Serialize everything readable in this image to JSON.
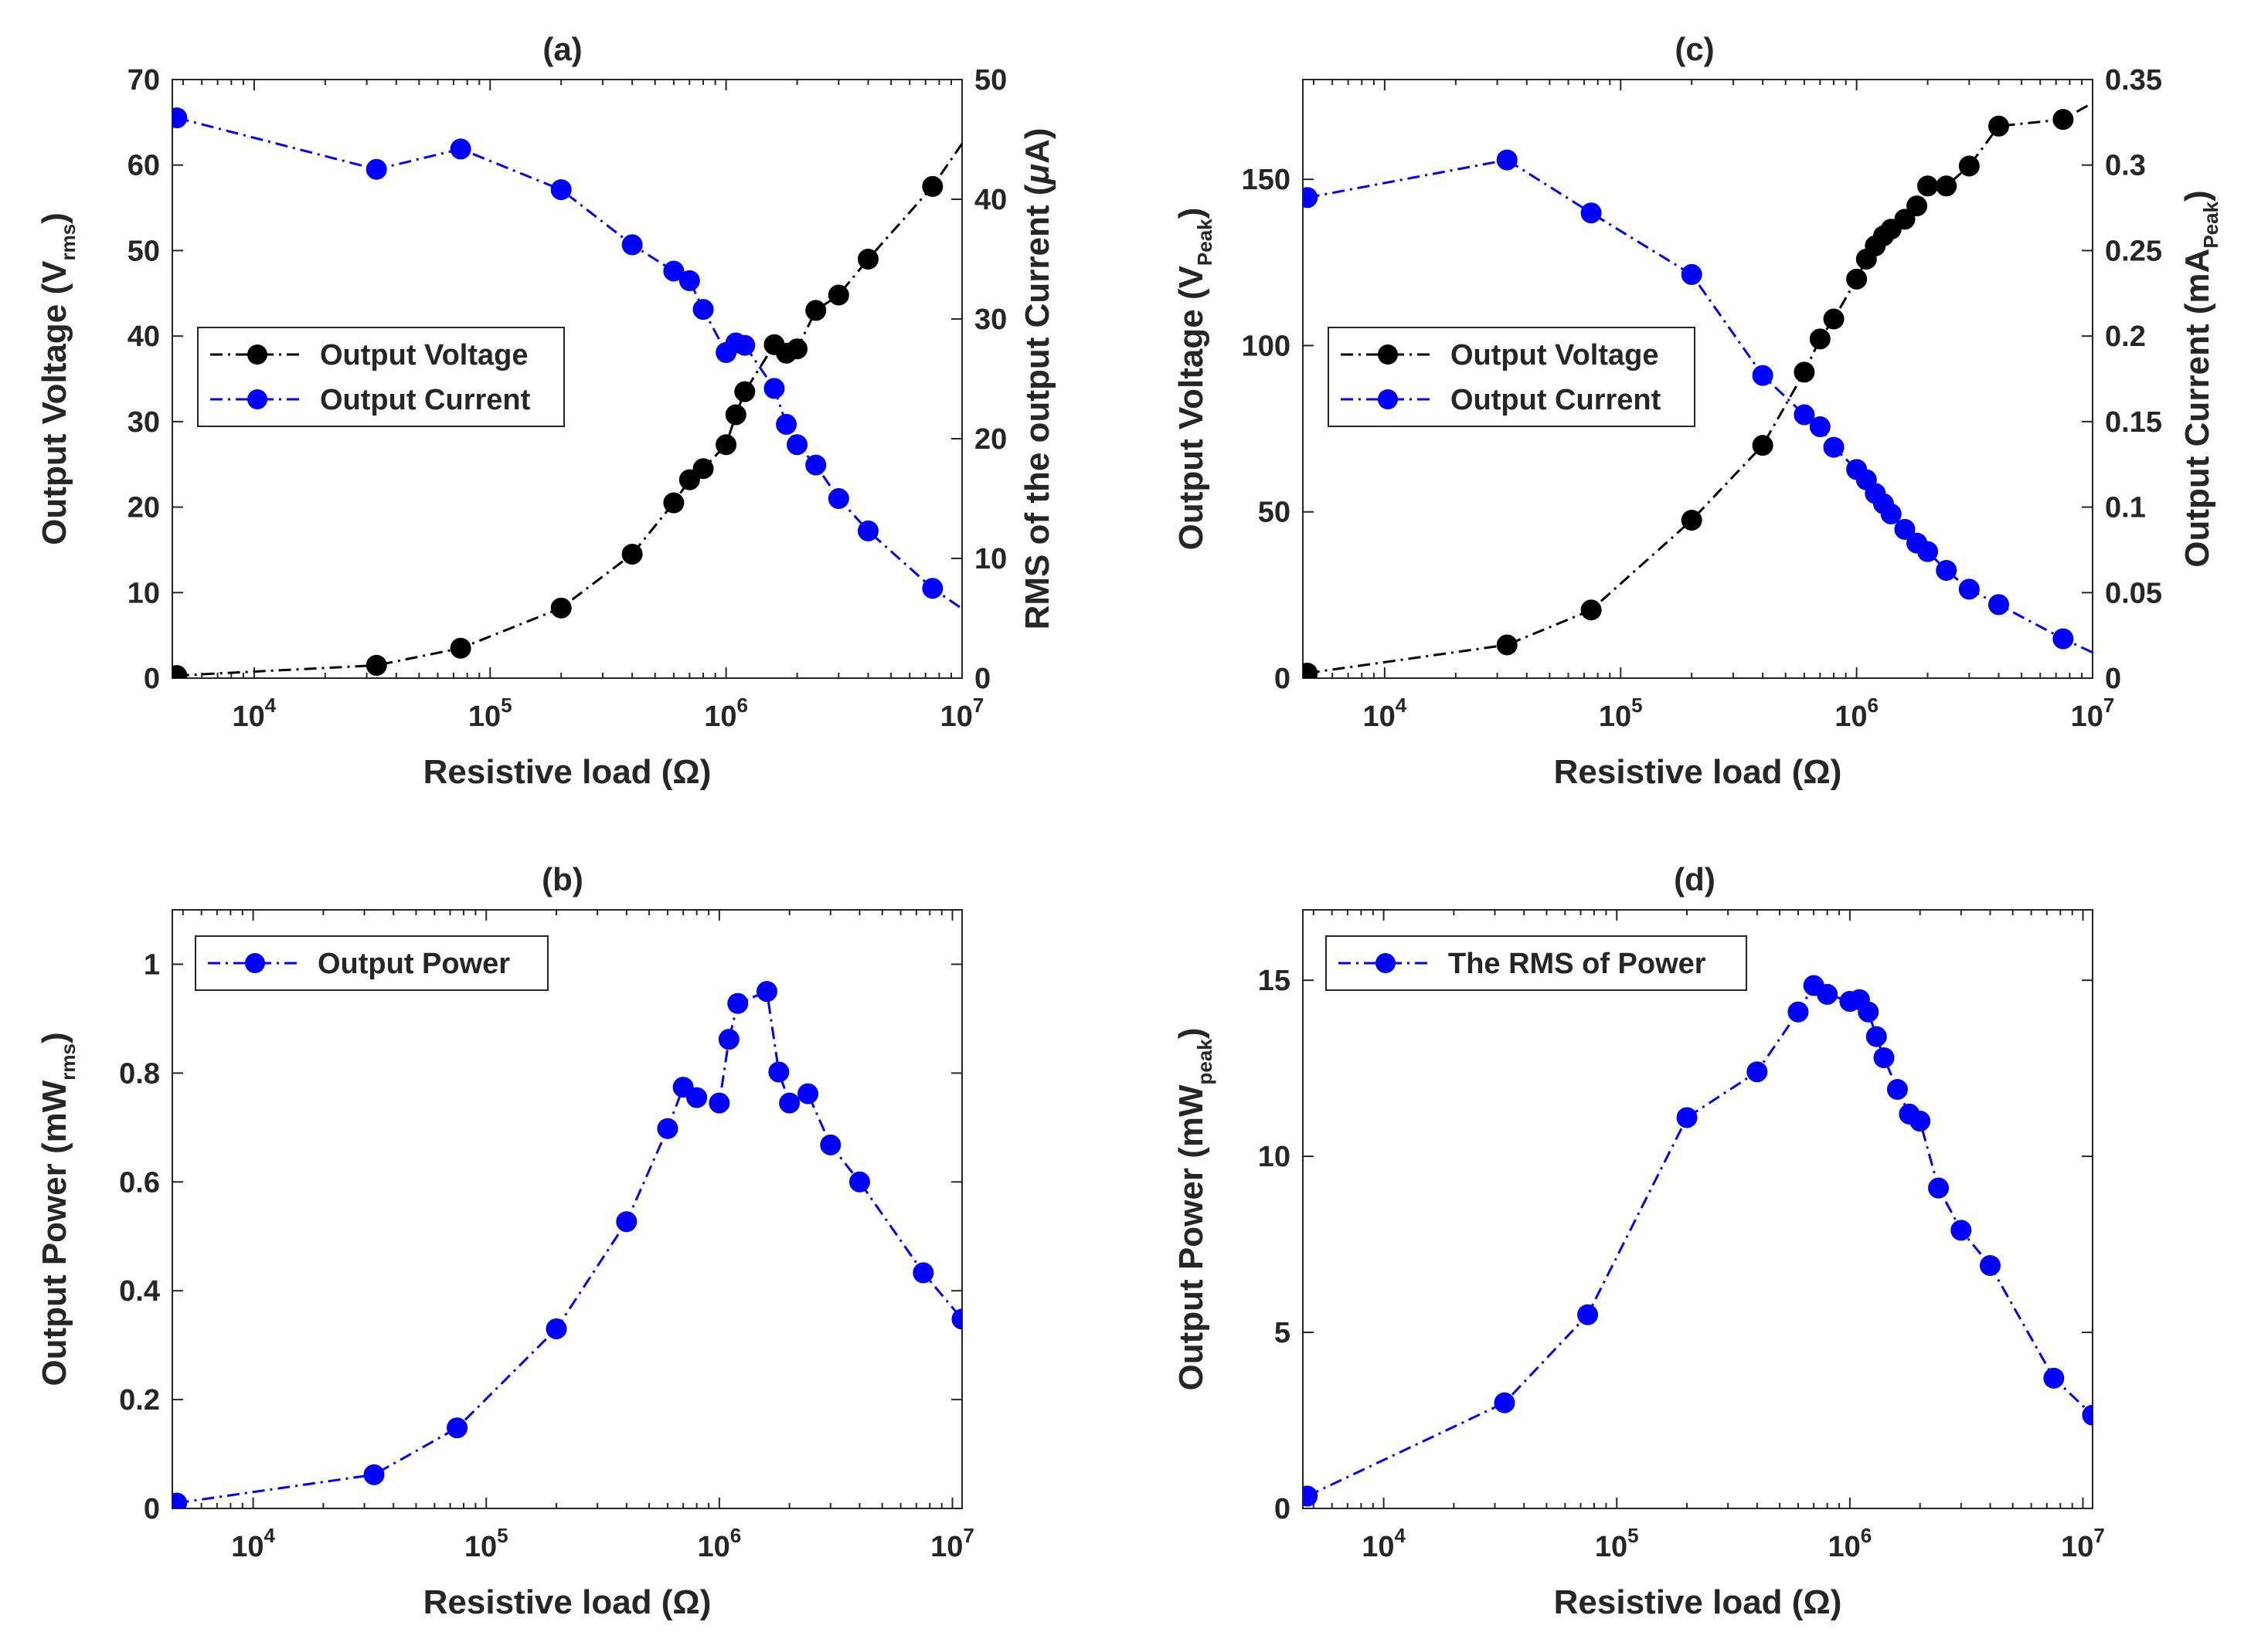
{
  "chart_data": [
    {
      "id": "a",
      "type": "line",
      "title": "(a)",
      "xlabel": "Resistive load (Ω)",
      "xscale": "log",
      "xlim": [
        4500,
        10000000
      ],
      "xticks": [
        {
          "value": 10000,
          "base": "10",
          "exp": "4"
        },
        {
          "value": 100000,
          "base": "10",
          "exp": "5"
        },
        {
          "value": 1000000,
          "base": "10",
          "exp": "6"
        },
        {
          "value": 10000000,
          "base": "10",
          "exp": "7"
        }
      ],
      "ylabel": {
        "main": "Output Voltage (V",
        "sub": "rms",
        "end": ")"
      },
      "ylim": [
        0,
        70
      ],
      "yticks": [
        0,
        10,
        20,
        30,
        40,
        50,
        60,
        70
      ],
      "y2label": {
        "text": "RMS of the output Current (",
        "greek": "μ",
        "end": "A)"
      },
      "y2lim": [
        0,
        50
      ],
      "y2ticks": [
        0,
        10,
        20,
        30,
        40,
        50
      ],
      "legend_position": "center-left",
      "series": [
        {
          "name": "Output Voltage",
          "axis": "left",
          "color": "#000000",
          "line": "dashdot",
          "x": [
            4700,
            33000,
            75000,
            200000,
            400000,
            600000,
            700000,
            800000,
            1000000,
            1100000,
            1200000,
            1600000,
            1800000,
            2000000,
            2400000,
            3000000,
            4000000,
            7500000,
            10000000
          ],
          "y": [
            0.3,
            1.5,
            3.5,
            8.2,
            14.5,
            20.5,
            23.2,
            24.5,
            27.3,
            30.8,
            33.5,
            39.0,
            38.0,
            38.5,
            43.0,
            44.8,
            49.0,
            57.5,
            62.5
          ],
          "marker_count": 18
        },
        {
          "name": "Output Current",
          "axis": "right",
          "color": "#0000FF",
          "line": "dashdot",
          "x": [
            4700,
            33000,
            75000,
            200000,
            400000,
            600000,
            700000,
            800000,
            1000000,
            1100000,
            1200000,
            1600000,
            1800000,
            2000000,
            2400000,
            3000000,
            4000000,
            7500000,
            10000000
          ],
          "y": [
            46.8,
            42.5,
            44.2,
            40.8,
            36.2,
            34.0,
            33.2,
            30.8,
            27.2,
            28.0,
            27.8,
            24.2,
            21.2,
            19.5,
            17.8,
            15.0,
            12.3,
            7.5,
            5.8
          ],
          "marker_count": 18
        }
      ]
    },
    {
      "id": "c",
      "type": "line",
      "title": "(c)",
      "xlabel": "Resistive load (Ω)",
      "xscale": "log",
      "xlim": [
        4500,
        10000000
      ],
      "xticks": [
        {
          "value": 10000,
          "base": "10",
          "exp": "4"
        },
        {
          "value": 100000,
          "base": "10",
          "exp": "5"
        },
        {
          "value": 1000000,
          "base": "10",
          "exp": "6"
        },
        {
          "value": 10000000,
          "base": "10",
          "exp": "7"
        }
      ],
      "ylabel": {
        "main": "Output Voltage (V",
        "sub": "Peak",
        "end": ")"
      },
      "ylim": [
        0,
        180
      ],
      "yticks": [
        0,
        50,
        100,
        150
      ],
      "y2label": {
        "main": "Output Current (mA",
        "sub": "Peak",
        "end": ")"
      },
      "y2lim": [
        0,
        0.35
      ],
      "y2ticks": [
        0,
        0.05,
        0.1,
        0.15,
        0.2,
        0.25,
        0.3,
        0.35
      ],
      "y2ticklabels": [
        "0",
        "0.05",
        "0.1",
        "0.15",
        "0.2",
        "0.25",
        "0.3",
        "0.35"
      ],
      "legend_position": "center-left",
      "series": [
        {
          "name": "Output Voltage",
          "axis": "left",
          "color": "#000000",
          "line": "dashdot",
          "x": [
            4700,
            33000,
            75000,
            200000,
            400000,
            600000,
            700000,
            800000,
            1000000,
            1100000,
            1200000,
            1300000,
            1400000,
            1600000,
            1800000,
            2000000,
            2400000,
            3000000,
            4000000,
            7500000,
            10000000
          ],
          "y": [
            1.5,
            10.0,
            20.5,
            47.5,
            70.0,
            92.0,
            102.0,
            108.0,
            120.0,
            126.0,
            130.0,
            133.0,
            135.0,
            138.0,
            142.0,
            148.0,
            148.0,
            154.0,
            166.0,
            168.0,
            173.0
          ],
          "marker_count": 20
        },
        {
          "name": "Output Current",
          "axis": "right",
          "color": "#0000FF",
          "line": "dashdot",
          "x": [
            4700,
            33000,
            75000,
            200000,
            400000,
            600000,
            700000,
            800000,
            1000000,
            1100000,
            1200000,
            1300000,
            1400000,
            1600000,
            1800000,
            2000000,
            2400000,
            3000000,
            4000000,
            7500000,
            10000000
          ],
          "y": [
            0.281,
            0.303,
            0.272,
            0.236,
            0.177,
            0.154,
            0.147,
            0.135,
            0.122,
            0.116,
            0.108,
            0.102,
            0.096,
            0.087,
            0.079,
            0.074,
            0.063,
            0.052,
            0.043,
            0.023,
            0.015
          ],
          "marker_count": 20
        }
      ]
    },
    {
      "id": "b",
      "type": "line",
      "title": "(b)",
      "xlabel": "Resistive load (Ω)",
      "xscale": "log",
      "xlim": [
        4500,
        11000000
      ],
      "xticks": [
        {
          "value": 10000,
          "base": "10",
          "exp": "4"
        },
        {
          "value": 100000,
          "base": "10",
          "exp": "5"
        },
        {
          "value": 1000000,
          "base": "10",
          "exp": "6"
        },
        {
          "value": 10000000,
          "base": "10",
          "exp": "7"
        }
      ],
      "ylabel": {
        "main": "Output Power (mW",
        "sub": "rms",
        "end": ")"
      },
      "ylim": [
        0,
        1.1
      ],
      "yticks": [
        0,
        0.2,
        0.4,
        0.6,
        0.8,
        1
      ],
      "yticklabels": [
        "0",
        "0.2",
        "0.4",
        "0.6",
        "0.8",
        "1"
      ],
      "legend_position": "top-left",
      "series": [
        {
          "name": "Output Power",
          "color": "#0000FF",
          "line": "dashdot",
          "x": [
            4700,
            33000,
            75000,
            200000,
            400000,
            600000,
            700000,
            800000,
            1000000,
            1100000,
            1200000,
            1600000,
            1800000,
            2000000,
            2400000,
            3000000,
            4000000,
            7500000,
            11000000
          ],
          "y": [
            0.01,
            0.062,
            0.148,
            0.33,
            0.527,
            0.698,
            0.774,
            0.755,
            0.745,
            0.862,
            0.928,
            0.95,
            0.802,
            0.745,
            0.762,
            0.668,
            0.6,
            0.433,
            0.348
          ],
          "marker_count": 19
        }
      ]
    },
    {
      "id": "d",
      "type": "line",
      "title": "(d)",
      "xlabel": "Resistive load (Ω)",
      "xscale": "log",
      "xlim": [
        4500,
        11000000
      ],
      "xticks": [
        {
          "value": 10000,
          "base": "10",
          "exp": "4"
        },
        {
          "value": 100000,
          "base": "10",
          "exp": "5"
        },
        {
          "value": 1000000,
          "base": "10",
          "exp": "6"
        },
        {
          "value": 10000000,
          "base": "10",
          "exp": "7"
        }
      ],
      "ylabel": {
        "main": "Output Power (mW",
        "sub": "peak",
        "end": ")"
      },
      "ylim": [
        0,
        17
      ],
      "yticks": [
        0,
        5,
        10,
        15
      ],
      "legend_position": "top-left",
      "series": [
        {
          "name": "The RMS of Power",
          "color": "#0000FF",
          "line": "dashdot",
          "x": [
            4700,
            33000,
            75000,
            200000,
            400000,
            600000,
            700000,
            800000,
            1000000,
            1100000,
            1200000,
            1300000,
            1400000,
            1600000,
            1800000,
            2000000,
            2400000,
            3000000,
            4000000,
            7500000,
            11000000
          ],
          "y": [
            0.35,
            3.0,
            5.5,
            11.1,
            12.4,
            14.1,
            14.85,
            14.6,
            14.4,
            14.45,
            14.1,
            13.4,
            12.8,
            11.9,
            11.2,
            11.0,
            9.1,
            7.9,
            6.9,
            3.7,
            2.65
          ],
          "marker_count": 21
        }
      ]
    }
  ]
}
